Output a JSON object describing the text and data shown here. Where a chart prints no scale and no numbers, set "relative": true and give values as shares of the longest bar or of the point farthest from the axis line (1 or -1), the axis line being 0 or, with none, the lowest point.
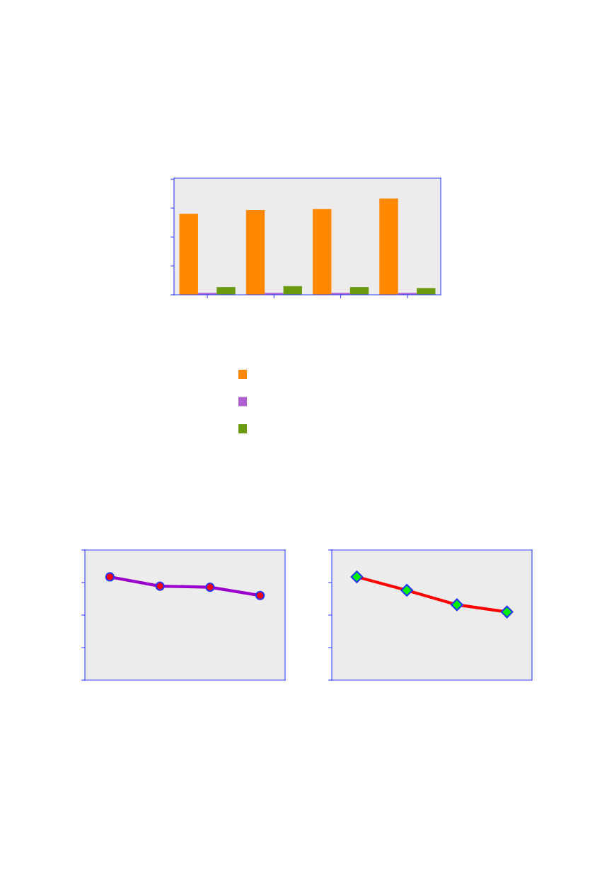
{
  "chart_data": [
    {
      "type": "bar",
      "relative": true,
      "categories": [
        null,
        null,
        null,
        null
      ],
      "legend": false,
      "grid": false,
      "series": [
        {
          "color": "#ff8800",
          "values": [
            0.84,
            0.88,
            0.89,
            1
          ]
        },
        {
          "color": "#b060d0",
          "values": [
            0.02,
            0.02,
            0.02,
            0.02
          ]
        },
        {
          "color": "#6a9a10",
          "values": [
            0.08,
            0.09,
            0.08,
            0.07
          ]
        }
      ]
    },
    {
      "type": "line",
      "relative": true,
      "categories": [
        null,
        null,
        null,
        null
      ],
      "grid": false,
      "marker": "circle",
      "line_style": "solid",
      "series": [
        {
          "color": "#9900cc",
          "values": [
            1,
            0.91,
            0.9,
            0.82
          ]
        }
      ]
    },
    {
      "type": "line",
      "relative": true,
      "categories": [
        null,
        null,
        null,
        null
      ],
      "grid": false,
      "marker": "diamond",
      "line_style": "solid",
      "series": [
        {
          "color": "#ff0000",
          "values": [
            1,
            0.87,
            0.73,
            0.66
          ]
        }
      ]
    }
  ]
}
